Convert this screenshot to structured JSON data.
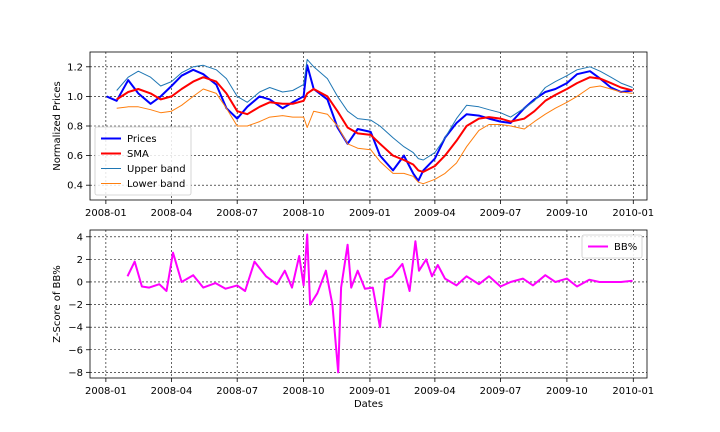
{
  "chart_data": [
    {
      "type": "line",
      "xlabel": "",
      "ylabel": "Normalized Prices",
      "xticks": [
        "2008-01",
        "2008-04",
        "2008-07",
        "2008-10",
        "2009-01",
        "2009-04",
        "2009-07",
        "2009-10",
        "2010-01"
      ],
      "xtick_dates": [
        "2008-01-01",
        "2008-04-01",
        "2008-07-01",
        "2008-10-01",
        "2009-01-01",
        "2009-04-01",
        "2009-07-01",
        "2009-10-01",
        "2010-01-01"
      ],
      "xlim": [
        "2007-12-10",
        "2010-01-20"
      ],
      "yticks": [
        0.4,
        0.6,
        0.8,
        1.0,
        1.2
      ],
      "ytick_labels": [
        "0.4",
        "0.6",
        "0.8",
        "1.0",
        "1.2"
      ],
      "ylim": [
        0.3,
        1.3
      ],
      "grid": true,
      "legend_position": "lower-left",
      "x": [
        "2008-01-02",
        "2008-01-16",
        "2008-02-01",
        "2008-02-15",
        "2008-03-03",
        "2008-03-17",
        "2008-04-01",
        "2008-04-15",
        "2008-05-01",
        "2008-05-15",
        "2008-06-02",
        "2008-06-16",
        "2008-07-01",
        "2008-07-15",
        "2008-08-01",
        "2008-08-15",
        "2008-09-02",
        "2008-09-16",
        "2008-10-01",
        "2008-10-06",
        "2008-10-15",
        "2008-11-03",
        "2008-11-17",
        "2008-12-01",
        "2008-12-15",
        "2009-01-02",
        "2009-01-15",
        "2009-02-02",
        "2009-02-17",
        "2009-03-02",
        "2009-03-09",
        "2009-03-16",
        "2009-04-01",
        "2009-04-15",
        "2009-05-01",
        "2009-05-15",
        "2009-06-01",
        "2009-06-15",
        "2009-07-01",
        "2009-07-15",
        "2009-08-03",
        "2009-08-17",
        "2009-09-01",
        "2009-09-15",
        "2009-10-01",
        "2009-10-15",
        "2009-11-02",
        "2009-11-16",
        "2009-12-01",
        "2009-12-15",
        "2009-12-31"
      ],
      "series": [
        {
          "name": "Prices",
          "color": "#0000ff",
          "width": 2,
          "values": [
            1.0,
            0.97,
            1.11,
            1.02,
            0.95,
            1.0,
            1.07,
            1.14,
            1.18,
            1.15,
            1.08,
            0.92,
            0.85,
            0.93,
            1.0,
            0.98,
            0.92,
            0.96,
            1.0,
            1.21,
            1.05,
            0.98,
            0.79,
            0.68,
            0.78,
            0.76,
            0.6,
            0.5,
            0.6,
            0.48,
            0.43,
            0.5,
            0.58,
            0.72,
            0.82,
            0.88,
            0.87,
            0.85,
            0.83,
            0.82,
            0.92,
            0.98,
            1.03,
            1.05,
            1.09,
            1.15,
            1.17,
            1.12,
            1.06,
            1.03,
            1.04
          ]
        },
        {
          "name": "SMA",
          "color": "#ff0000",
          "width": 2,
          "values": [
            null,
            0.98,
            1.03,
            1.05,
            1.02,
            0.98,
            1.0,
            1.05,
            1.1,
            1.13,
            1.1,
            1.02,
            0.9,
            0.88,
            0.93,
            0.96,
            0.95,
            0.95,
            0.97,
            1.02,
            1.05,
            1.0,
            0.9,
            0.79,
            0.75,
            0.74,
            0.68,
            0.6,
            0.57,
            0.54,
            0.5,
            0.49,
            0.53,
            0.6,
            0.7,
            0.8,
            0.85,
            0.86,
            0.85,
            0.83,
            0.85,
            0.9,
            0.97,
            1.01,
            1.05,
            1.09,
            1.13,
            1.12,
            1.09,
            1.06,
            1.04
          ]
        },
        {
          "name": "Upper band",
          "color": "#1f77b4",
          "width": 1,
          "values": [
            null,
            1.04,
            1.13,
            1.17,
            1.13,
            1.07,
            1.1,
            1.16,
            1.2,
            1.21,
            1.18,
            1.12,
            1.0,
            0.96,
            1.03,
            1.06,
            1.03,
            1.04,
            1.08,
            1.25,
            1.2,
            1.12,
            1.0,
            0.9,
            0.85,
            0.84,
            0.8,
            0.72,
            0.66,
            0.62,
            0.58,
            0.57,
            0.62,
            0.72,
            0.85,
            0.94,
            0.93,
            0.91,
            0.89,
            0.86,
            0.92,
            0.97,
            1.06,
            1.1,
            1.14,
            1.18,
            1.2,
            1.17,
            1.13,
            1.09,
            1.06
          ]
        },
        {
          "name": "Lower band",
          "color": "#ff7f0e",
          "width": 1,
          "values": [
            null,
            0.92,
            0.93,
            0.93,
            0.91,
            0.89,
            0.9,
            0.94,
            1.0,
            1.05,
            1.02,
            0.92,
            0.8,
            0.8,
            0.83,
            0.86,
            0.87,
            0.86,
            0.86,
            0.79,
            0.9,
            0.88,
            0.8,
            0.68,
            0.65,
            0.64,
            0.56,
            0.48,
            0.48,
            0.46,
            0.42,
            0.41,
            0.44,
            0.48,
            0.55,
            0.66,
            0.77,
            0.81,
            0.81,
            0.8,
            0.78,
            0.83,
            0.88,
            0.92,
            0.96,
            1.0,
            1.06,
            1.07,
            1.05,
            1.03,
            1.02
          ]
        }
      ]
    },
    {
      "type": "line",
      "xlabel": "Dates",
      "ylabel": "Z-Score of BB%",
      "xticks": [
        "2008-01",
        "2008-04",
        "2008-07",
        "2008-10",
        "2009-01",
        "2009-04",
        "2009-07",
        "2009-10",
        "2010-01"
      ],
      "xtick_dates": [
        "2008-01-01",
        "2008-04-01",
        "2008-07-01",
        "2008-10-01",
        "2009-01-01",
        "2009-04-01",
        "2009-07-01",
        "2009-10-01",
        "2010-01-01"
      ],
      "xlim": [
        "2007-12-10",
        "2010-01-20"
      ],
      "yticks": [
        -8,
        -6,
        -4,
        -2,
        0,
        2,
        4
      ],
      "ytick_labels": [
        "−8",
        "−6",
        "−4",
        "−2",
        "0",
        "2",
        "4"
      ],
      "ylim": [
        -8.5,
        4.6
      ],
      "grid": true,
      "legend_position": "upper-right",
      "x": [
        "2008-01-31",
        "2008-02-10",
        "2008-02-20",
        "2008-03-01",
        "2008-03-15",
        "2008-03-25",
        "2008-04-03",
        "2008-04-15",
        "2008-05-01",
        "2008-05-15",
        "2008-06-01",
        "2008-06-15",
        "2008-07-01",
        "2008-07-12",
        "2008-07-25",
        "2008-08-10",
        "2008-08-25",
        "2008-09-05",
        "2008-09-15",
        "2008-09-25",
        "2008-10-01",
        "2008-10-06",
        "2008-10-10",
        "2008-10-20",
        "2008-11-01",
        "2008-11-10",
        "2008-11-18",
        "2008-11-22",
        "2008-12-01",
        "2008-12-06",
        "2008-12-15",
        "2008-12-25",
        "2009-01-05",
        "2009-01-15",
        "2009-01-22",
        "2009-02-01",
        "2009-02-15",
        "2009-02-25",
        "2009-03-05",
        "2009-03-10",
        "2009-03-20",
        "2009-03-28",
        "2009-04-05",
        "2009-04-15",
        "2009-05-01",
        "2009-05-15",
        "2009-06-01",
        "2009-06-15",
        "2009-07-01",
        "2009-07-15",
        "2009-08-01",
        "2009-08-15",
        "2009-09-01",
        "2009-09-15",
        "2009-10-01",
        "2009-10-15",
        "2009-11-01",
        "2009-11-15",
        "2009-12-01",
        "2009-12-15",
        "2009-12-31"
      ],
      "series": [
        {
          "name": "BB%",
          "color": "#ff00ff",
          "width": 2,
          "values": [
            0.5,
            1.8,
            -0.4,
            -0.5,
            -0.2,
            -0.8,
            2.6,
            0.0,
            0.6,
            -0.5,
            -0.1,
            -0.6,
            -0.3,
            -0.8,
            1.8,
            0.5,
            -0.2,
            1.0,
            -0.5,
            2.3,
            -0.3,
            4.2,
            -2.0,
            -1.0,
            1.0,
            -2.0,
            -8.0,
            -0.5,
            3.3,
            -0.5,
            1.0,
            -0.6,
            -0.5,
            -4.0,
            0.2,
            0.5,
            1.6,
            -0.8,
            3.6,
            1.0,
            2.0,
            0.5,
            1.5,
            0.3,
            -0.3,
            0.5,
            -0.2,
            0.5,
            -0.4,
            0.0,
            0.3,
            -0.3,
            0.6,
            0.0,
            0.3,
            -0.4,
            0.2,
            0.0,
            0.0,
            0.0,
            0.1
          ]
        }
      ]
    }
  ]
}
